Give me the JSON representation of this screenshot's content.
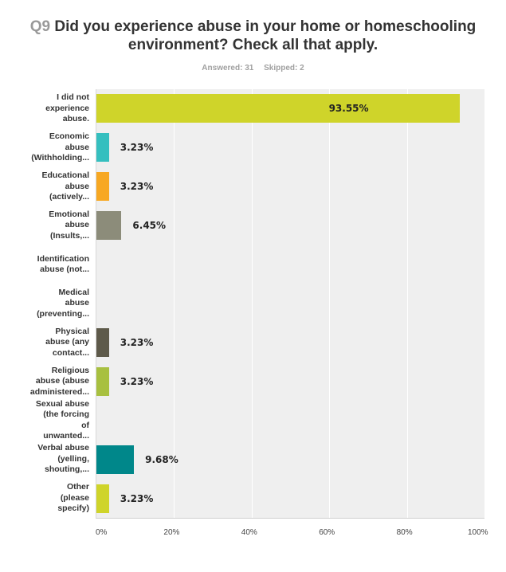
{
  "header": {
    "question_number": "Q9",
    "title_line1": "Did you experience abuse in your home or homeschooling",
    "title_line2": "environment? Check all that apply.",
    "answered": "Answered: 31",
    "skipped": "Skipped: 2"
  },
  "chart_data": {
    "type": "bar",
    "orientation": "horizontal",
    "title": "Q9 Did you experience abuse in your home or homeschooling environment? Check all that apply.",
    "subtitle": "Answered: 31 Skipped: 2",
    "xlabel": "",
    "ylabel": "",
    "xlim": [
      0,
      100
    ],
    "x_ticks": [
      "0%",
      "20%",
      "40%",
      "60%",
      "80%",
      "100%"
    ],
    "grid": true,
    "legend": false,
    "categories": [
      "I did not experience abuse.",
      "Economic abuse (Withholding...",
      "Educational abuse (actively...",
      "Emotional abuse (Insults,...",
      "Identification abuse (not...",
      "Medical abuse (preventing...",
      "Physical abuse (any contact...",
      "Religious abuse (abuse administered...",
      "Sexual abuse (the forcing of unwanted...",
      "Verbal abuse (yelling, shouting,...",
      "Other (please specify)"
    ],
    "values": [
      93.55,
      3.23,
      3.23,
      6.45,
      0,
      0,
      3.23,
      3.23,
      0,
      9.68,
      3.23
    ],
    "value_labels": [
      "93.55%",
      "3.23%",
      "3.23%",
      "6.45%",
      "",
      "",
      "3.23%",
      "3.23%",
      "",
      "9.68%",
      "3.23%"
    ],
    "colors": [
      "#cfd42a",
      "#35bfbf",
      "#f7a823",
      "#8c8c7a",
      "#cccccc",
      "#cccccc",
      "#5e5a4a",
      "#a8c040",
      "#cccccc",
      "#00878a",
      "#cfd42a"
    ]
  },
  "rows": [
    {
      "label_lines": [
        "I did not",
        "experience",
        "abuse."
      ],
      "pct": "93.55%",
      "value": 93.55,
      "color": "#cfd42a",
      "label_inside": true
    },
    {
      "label_lines": [
        "Economic",
        "abuse",
        "(Withholding..."
      ],
      "pct": "3.23%",
      "value": 3.23,
      "color": "#35bfbf"
    },
    {
      "label_lines": [
        "Educational",
        "abuse",
        "(actively..."
      ],
      "pct": "3.23%",
      "value": 3.23,
      "color": "#f7a823"
    },
    {
      "label_lines": [
        "Emotional",
        "abuse",
        "(Insults,..."
      ],
      "pct": "6.45%",
      "value": 6.45,
      "color": "#8c8c7a"
    },
    {
      "label_lines": [
        "Identification",
        "abuse (not..."
      ],
      "pct": "",
      "value": 0,
      "color": "#cccccc"
    },
    {
      "label_lines": [
        "Medical",
        "abuse",
        "(preventing..."
      ],
      "pct": "",
      "value": 0,
      "color": "#cccccc"
    },
    {
      "label_lines": [
        "Physical",
        "abuse (any",
        "contact..."
      ],
      "pct": "3.23%",
      "value": 3.23,
      "color": "#5e5a4a"
    },
    {
      "label_lines": [
        "Religious",
        "abuse (abuse",
        "administered..."
      ],
      "pct": "3.23%",
      "value": 3.23,
      "color": "#a8c040"
    },
    {
      "label_lines": [
        "Sexual abuse",
        "(the forcing",
        "of",
        "unwanted..."
      ],
      "pct": "",
      "value": 0,
      "color": "#cccccc"
    },
    {
      "label_lines": [
        "Verbal abuse",
        "(yelling,",
        "shouting,..."
      ],
      "pct": "9.68%",
      "value": 9.68,
      "color": "#00878a"
    },
    {
      "label_lines": [
        "Other",
        "(please",
        "specify)"
      ],
      "pct": "3.23%",
      "value": 3.23,
      "color": "#cfd42a"
    }
  ],
  "x_axis": {
    "ticks": [
      "0%",
      "20%",
      "40%",
      "60%",
      "80%",
      "100%"
    ]
  }
}
